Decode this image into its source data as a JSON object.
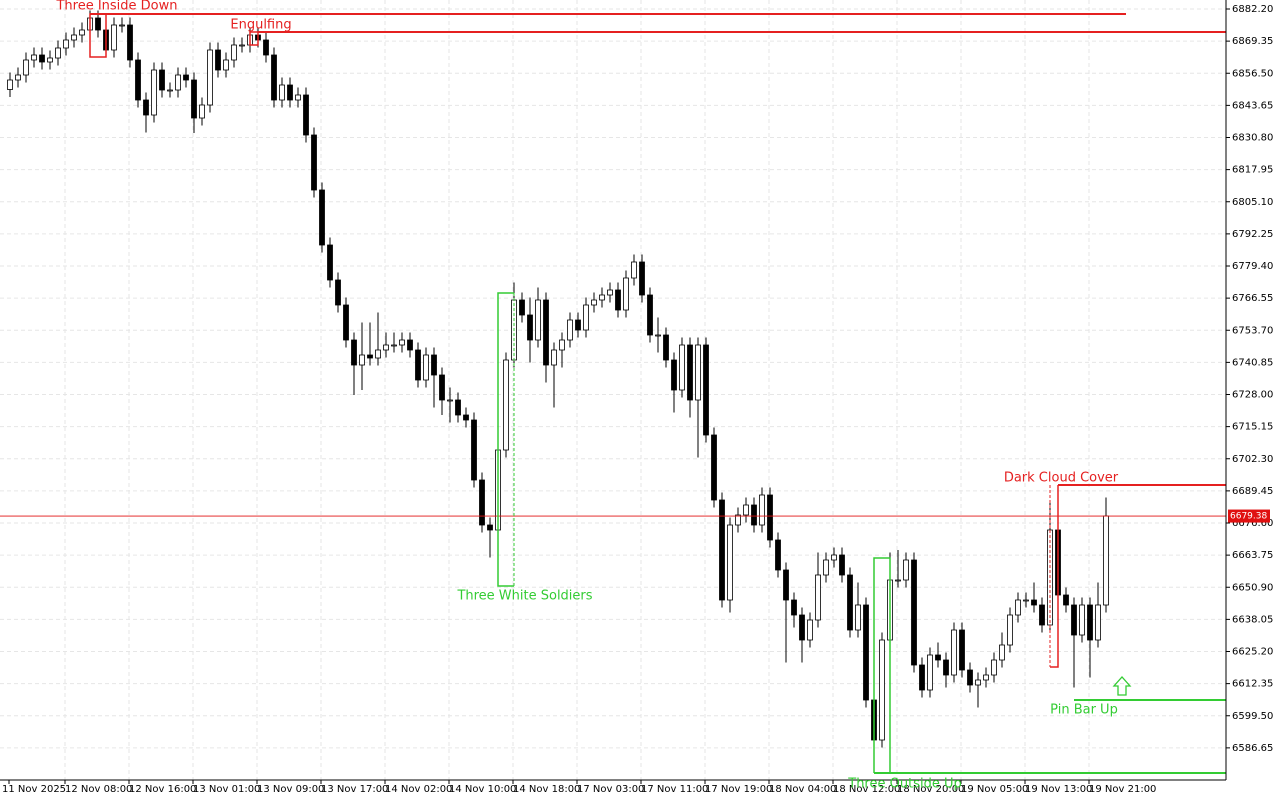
{
  "chart_data": {
    "type": "candlestick",
    "categories": [
      "11 Nov 2025",
      null,
      null,
      null,
      null,
      null,
      null,
      "12 Nov 08:00",
      null,
      null,
      null,
      null,
      null,
      null,
      null,
      "12 Nov 16:00",
      null,
      null,
      null,
      null,
      null,
      null,
      null,
      "13 Nov 01:00",
      null,
      null,
      null,
      null,
      null,
      null,
      null,
      "13 Nov 09:00",
      null,
      null,
      null,
      null,
      null,
      null,
      null,
      "13 Nov 17:00",
      null,
      null,
      null,
      null,
      null,
      null,
      null,
      "14 Nov 02:00",
      null,
      null,
      null,
      null,
      null,
      null,
      null,
      "14 Nov 10:00",
      null,
      null,
      null,
      null,
      null,
      null,
      null,
      "14 Nov 18:00",
      null,
      null,
      null,
      null,
      null,
      null,
      null,
      "17 Nov 03:00",
      null,
      null,
      null,
      null,
      null,
      null,
      null,
      "17 Nov 11:00",
      null,
      null,
      null,
      null,
      null,
      null,
      null,
      "17 Nov 19:00",
      null,
      null,
      null,
      null,
      null,
      null,
      null,
      "18 Nov 04:00",
      null,
      null,
      null,
      null,
      null,
      null,
      null,
      "18 Nov 12:00",
      null,
      null,
      null,
      null,
      null,
      null,
      null,
      "18 Nov 20:00",
      null,
      null,
      null,
      null,
      null,
      null,
      null,
      "19 Nov 05:00",
      null,
      null,
      null,
      null,
      null,
      null,
      null,
      "19 Nov 13:00",
      null,
      null,
      null,
      null,
      null,
      null,
      null,
      "19 Nov 21:00",
      null,
      null
    ],
    "open": [
      6850.0,
      6853.8,
      6855.8,
      6861.8,
      6863.8,
      6861.0,
      6862.6,
      6866.6,
      6869.8,
      6871.8,
      6873.8,
      6878.6,
      6873.8,
      6865.8,
      6875.8,
      6875.8,
      6861.8,
      6845.8,
      6839.8,
      6857.8,
      6849.8,
      6849.8,
      6855.8,
      6853.8,
      6838.6,
      6843.8,
      6865.8,
      6857.8,
      6861.8,
      6867.8,
      6867.8,
      6871.8,
      6869.8,
      6863.8,
      6845.8,
      6851.8,
      6845.8,
      6847.8,
      6831.8,
      6809.8,
      6787.8,
      6773.8,
      6763.8,
      6749.8,
      6739.8,
      6743.8,
      6742.6,
      6745.8,
      6747.8,
      6747.8,
      6749.8,
      6745.8,
      6733.8,
      6743.8,
      6735.8,
      6725.8,
      6725.8,
      6719.8,
      6717.8,
      6693.8,
      6675.8,
      6673.8,
      6705.8,
      6741.8,
      6765.8,
      6759.8,
      6749.8,
      6765.8,
      6739.8,
      6745.8,
      6749.8,
      6757.8,
      6753.8,
      6763.8,
      6765.8,
      6767.8,
      6769.8,
      6761.8,
      6774.6,
      6781.0,
      6767.8,
      6751.8,
      6751.8,
      6741.8,
      6729.8,
      6747.8,
      6725.8,
      6747.8,
      6711.8,
      6685.8,
      6645.8,
      6675.8,
      6679.8,
      6683.8,
      6675.8,
      6687.8,
      6669.8,
      6657.8,
      6645.8,
      6639.8,
      6629.8,
      6637.8,
      6655.8,
      6661.8,
      6663.8,
      6655.8,
      6633.8,
      6643.8,
      6605.8,
      6589.8,
      6629.8,
      6653.8,
      6653.8,
      6661.8,
      6619.8,
      6609.8,
      6623.8,
      6621.8,
      6615.8,
      6633.8,
      6617.8,
      6611.8,
      6613.8,
      6615.8,
      6621.8,
      6627.8,
      6639.8,
      6645.8,
      6645.8,
      6643.8,
      6635.8,
      6673.8,
      6647.8,
      6643.8,
      6631.8,
      6643.8,
      6629.8,
      6643.8
    ],
    "high": [
      6856.8,
      6858.8,
      6864.8,
      6866.8,
      6866.8,
      6865.6,
      6869.6,
      6872.8,
      6874.8,
      6876.8,
      6881.6,
      6881.6,
      6876.8,
      6878.8,
      6878.8,
      6878.8,
      6864.8,
      6848.8,
      6860.8,
      6860.8,
      6852.8,
      6858.8,
      6858.8,
      6856.8,
      6846.8,
      6868.8,
      6868.8,
      6864.8,
      6870.8,
      6870.8,
      6874.8,
      6874.8,
      6872.8,
      6866.8,
      6854.8,
      6854.8,
      6850.8,
      6850.8,
      6834.8,
      6812.8,
      6790.8,
      6776.8,
      6766.8,
      6752.8,
      6756.8,
      6756.8,
      6760.8,
      6752.8,
      6752.8,
      6752.8,
      6752.8,
      6748.8,
      6746.8,
      6746.8,
      6738.8,
      6730.8,
      6728.8,
      6722.8,
      6720.8,
      6696.8,
      6678.8,
      6708.8,
      6744.8,
      6772.8,
      6768.8,
      6766.8,
      6770.8,
      6768.8,
      6748.8,
      6752.8,
      6760.8,
      6760.8,
      6766.8,
      6768.8,
      6770.8,
      6772.8,
      6772.8,
      6777.6,
      6784.0,
      6784.0,
      6770.8,
      6758.8,
      6754.8,
      6744.8,
      6750.8,
      6750.8,
      6750.8,
      6750.8,
      6714.8,
      6688.8,
      6678.8,
      6682.8,
      6686.8,
      6686.8,
      6690.8,
      6690.8,
      6672.8,
      6660.8,
      6648.8,
      6642.8,
      6640.8,
      6664.8,
      6664.8,
      6666.8,
      6666.8,
      6658.8,
      6652.8,
      6646.8,
      6608.8,
      6632.8,
      6664.8,
      6665.8,
      6664.8,
      6664.8,
      6622.8,
      6626.8,
      6628.8,
      6624.8,
      6636.8,
      6636.8,
      6620.8,
      6616.8,
      6618.8,
      6624.8,
      6632.8,
      6642.8,
      6648.8,
      6648.8,
      6652.8,
      6646.8,
      6684.8,
      6676.8,
      6650.8,
      6646.8,
      6646.8,
      6646.8,
      6652.8,
      6686.8
    ],
    "low": [
      6847.0,
      6850.8,
      6852.8,
      6858.8,
      6858.0,
      6858.0,
      6859.6,
      6863.6,
      6866.8,
      6868.8,
      6870.8,
      6870.8,
      6862.8,
      6862.8,
      6872.8,
      6858.8,
      6842.8,
      6832.8,
      6836.8,
      6846.8,
      6846.8,
      6846.8,
      6850.8,
      6832.6,
      6835.6,
      6840.8,
      6854.8,
      6854.8,
      6858.8,
      6864.8,
      6864.8,
      6866.8,
      6860.8,
      6842.8,
      6842.8,
      6842.8,
      6842.8,
      6828.8,
      6806.8,
      6784.8,
      6770.8,
      6760.8,
      6746.8,
      6727.8,
      6729.8,
      6739.6,
      6739.6,
      6742.8,
      6744.8,
      6744.8,
      6742.8,
      6730.8,
      6730.8,
      6722.8,
      6719.8,
      6716.8,
      6716.8,
      6714.8,
      6690.8,
      6672.8,
      6662.8,
      6654.8,
      6702.8,
      6738.8,
      6756.8,
      6740.8,
      6746.8,
      6732.8,
      6722.8,
      6738.8,
      6746.8,
      6750.8,
      6750.8,
      6760.8,
      6762.8,
      6764.8,
      6758.8,
      6758.8,
      6771.6,
      6764.8,
      6748.8,
      6744.8,
      6738.8,
      6720.8,
      6726.8,
      6718.8,
      6702.8,
      6708.8,
      6682.8,
      6642.8,
      6640.8,
      6672.8,
      6676.8,
      6672.8,
      6672.8,
      6666.8,
      6654.8,
      6620.8,
      6634.8,
      6620.8,
      6626.8,
      6634.8,
      6652.8,
      6658.8,
      6652.8,
      6630.8,
      6630.8,
      6602.8,
      6583.8,
      6586.8,
      6626.8,
      6650.8,
      6650.8,
      6616.8,
      6606.8,
      6606.8,
      6618.8,
      6610.8,
      6612.8,
      6614.8,
      6608.8,
      6602.8,
      6610.8,
      6612.8,
      6618.8,
      6624.8,
      6636.8,
      6642.8,
      6640.8,
      6632.8,
      6632.8,
      6644.8,
      6640.8,
      6610.8,
      6628.8,
      6614.8,
      6626.8,
      6640.8
    ],
    "close": [
      6853.8,
      6855.8,
      6861.8,
      6863.8,
      6861.0,
      6862.6,
      6866.6,
      6869.8,
      6871.8,
      6873.8,
      6878.6,
      6873.8,
      6865.8,
      6875.8,
      6875.8,
      6861.8,
      6845.8,
      6839.8,
      6857.8,
      6849.8,
      6849.8,
      6855.8,
      6853.8,
      6838.6,
      6843.8,
      6865.8,
      6857.8,
      6861.8,
      6867.8,
      6867.8,
      6871.8,
      6869.8,
      6863.8,
      6845.8,
      6851.8,
      6845.8,
      6847.8,
      6831.8,
      6809.8,
      6787.8,
      6773.8,
      6763.8,
      6749.8,
      6739.8,
      6743.8,
      6742.6,
      6745.8,
      6747.8,
      6747.8,
      6749.8,
      6745.8,
      6733.8,
      6743.8,
      6735.8,
      6725.8,
      6725.8,
      6719.8,
      6717.8,
      6693.8,
      6675.8,
      6673.8,
      6705.8,
      6741.8,
      6765.8,
      6759.8,
      6749.8,
      6765.8,
      6739.8,
      6745.8,
      6749.8,
      6757.8,
      6753.8,
      6763.8,
      6765.8,
      6767.8,
      6769.8,
      6761.8,
      6774.6,
      6781.0,
      6767.8,
      6751.8,
      6751.8,
      6741.8,
      6729.8,
      6747.8,
      6725.8,
      6747.8,
      6711.8,
      6685.8,
      6645.8,
      6675.8,
      6679.8,
      6683.8,
      6675.8,
      6687.8,
      6669.8,
      6657.8,
      6645.8,
      6639.8,
      6629.8,
      6637.8,
      6655.8,
      6661.8,
      6663.8,
      6655.8,
      6633.8,
      6643.8,
      6605.8,
      6589.8,
      6629.8,
      6653.8,
      6653.8,
      6661.8,
      6619.8,
      6609.8,
      6623.8,
      6621.8,
      6615.8,
      6633.8,
      6617.8,
      6611.8,
      6613.8,
      6615.8,
      6621.8,
      6627.8,
      6639.8,
      6645.8,
      6645.8,
      6643.8,
      6635.8,
      6673.8,
      6647.8,
      6643.8,
      6631.8,
      6643.8,
      6629.8,
      6643.8,
      6679.38
    ],
    "up_color": "#ffffff",
    "down_color": "#000000",
    "ylim": [
      6573.8,
      6885.8
    ],
    "yticks": [
      {
        "value": 6882.2,
        "label": "6882.20"
      },
      {
        "value": 6869.35,
        "label": "6869.35"
      },
      {
        "value": 6856.5,
        "label": "6856.50"
      },
      {
        "value": 6843.65,
        "label": "6843.65"
      },
      {
        "value": 6830.8,
        "label": "6830.80"
      },
      {
        "value": 6817.95,
        "label": "6817.95"
      },
      {
        "value": 6805.1,
        "label": "6805.10"
      },
      {
        "value": 6792.25,
        "label": "6792.25"
      },
      {
        "value": 6779.4,
        "label": "6779.40"
      },
      {
        "value": 6766.55,
        "label": "6766.55"
      },
      {
        "value": 6753.7,
        "label": "6753.70"
      },
      {
        "value": 6740.85,
        "label": "6740.85"
      },
      {
        "value": 6728,
        "label": "6728.00"
      },
      {
        "value": 6715.15,
        "label": "6715.15"
      },
      {
        "value": 6702.3,
        "label": "6702.30"
      },
      {
        "value": 6689.45,
        "label": "6689.45"
      },
      {
        "value": 6676.6,
        "label": "6676.60"
      },
      {
        "value": 6663.75,
        "label": "6663.75"
      },
      {
        "value": 6650.9,
        "label": "6650.90"
      },
      {
        "value": 6638.05,
        "label": "6638.05"
      },
      {
        "value": 6625.2,
        "label": "6625.20"
      },
      {
        "value": 6612.35,
        "label": "6612.35"
      },
      {
        "value": 6599.5,
        "label": "6599.50"
      },
      {
        "value": 6586.65,
        "label": "6586.65"
      }
    ],
    "grid": true,
    "current_price": 6679.38,
    "current_price_color": "#e01010",
    "patterns": [
      {
        "label": "Three Inside Down",
        "color": "#e52020",
        "level": 6880.2
      },
      {
        "label": "Engulfing",
        "color": "#e52020",
        "level": 6873.0
      },
      {
        "label": "Three White Soldiers",
        "color": "#33cc33"
      },
      {
        "label": "Three Outside Up",
        "color": "#33cc33",
        "level": 6576.6
      },
      {
        "label": "Dark Cloud Cover",
        "color": "#e52020",
        "level": 6691.8
      },
      {
        "label": "Pin Bar Up",
        "color": "#33cc33",
        "level": 6605.8
      }
    ]
  }
}
